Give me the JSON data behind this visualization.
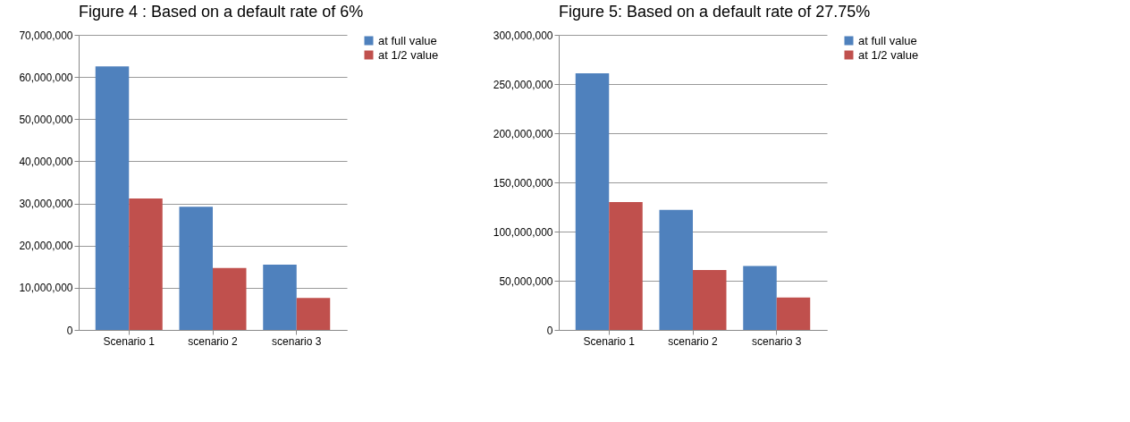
{
  "chart_data": [
    {
      "type": "bar",
      "title": "Figure 4 : Based on a default rate of 6%",
      "categories": [
        "Scenario 1",
        "scenario 2",
        "scenario 3"
      ],
      "series": [
        {
          "name": "at full value",
          "color": "#4f81bd",
          "values": [
            62500000,
            29200000,
            15500000
          ]
        },
        {
          "name": "at 1/2 value",
          "color": "#c0504d",
          "values": [
            31200000,
            14700000,
            7600000
          ]
        }
      ],
      "ylim": [
        0,
        70000000
      ],
      "yticks": [
        0,
        {
          "value": 10000000,
          "label": "10,000,000"
        },
        {
          "value": 20000000,
          "label": "20,000,000"
        },
        {
          "value": 30000000,
          "label": "30,000,000"
        },
        {
          "value": 40000000,
          "label": "40,000,000"
        },
        {
          "value": 50000000,
          "label": "50,000,000"
        },
        {
          "value": 60000000,
          "label": "60,000,000"
        },
        {
          "value": 70000000,
          "label": "70,000,000"
        }
      ],
      "grid": "y",
      "legend": "right"
    },
    {
      "type": "bar",
      "title": "Figure 5: Based on a default rate of 27.75%",
      "categories": [
        "Scenario 1",
        "scenario 2",
        "scenario 3"
      ],
      "series": [
        {
          "name": "at full value",
          "color": "#4f81bd",
          "values": [
            261000000,
            122000000,
            65000000
          ]
        },
        {
          "name": "at 1/2 value",
          "color": "#c0504d",
          "values": [
            130000000,
            61000000,
            33000000
          ]
        }
      ],
      "ylim": [
        0,
        300000000
      ],
      "yticks": [
        0,
        {
          "value": 50000000,
          "label": "50,000,000"
        },
        {
          "value": 100000000,
          "label": "100,000,000"
        },
        {
          "value": 150000000,
          "label": "150,000,000"
        },
        {
          "value": 200000000,
          "label": "200,000,000"
        },
        {
          "value": 250000000,
          "label": "250,000,000"
        },
        {
          "value": 300000000,
          "label": "300,000,000"
        }
      ],
      "grid": "y",
      "legend": "right"
    }
  ]
}
